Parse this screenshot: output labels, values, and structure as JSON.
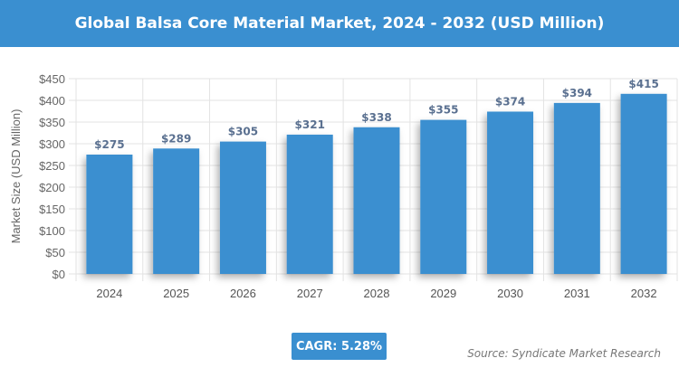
{
  "chart_data": {
    "type": "bar",
    "title": "Global Balsa Core Material Market, 2024 - 2032 (USD Million)",
    "xlabel": "",
    "ylabel": "Market Size (USD Million)",
    "categories": [
      "2024",
      "2025",
      "2026",
      "2027",
      "2028",
      "2029",
      "2030",
      "2031",
      "2032"
    ],
    "values": [
      275,
      289,
      305,
      321,
      338,
      355,
      374,
      394,
      415
    ],
    "data_labels": [
      "$275",
      "$289",
      "$305",
      "$321",
      "$338",
      "$355",
      "$374",
      "$394",
      "$415"
    ],
    "yticks": [
      "$0",
      "$50",
      "$100",
      "$150",
      "$200",
      "$250",
      "$300",
      "$350",
      "$400",
      "$450"
    ],
    "ylim": [
      0,
      450
    ],
    "grid": true,
    "bar_color": "#3a8fd0",
    "label_color": "#5a7090"
  },
  "cagr": "CAGR: 5.28%",
  "source": "Source: Syndicate Market Research"
}
